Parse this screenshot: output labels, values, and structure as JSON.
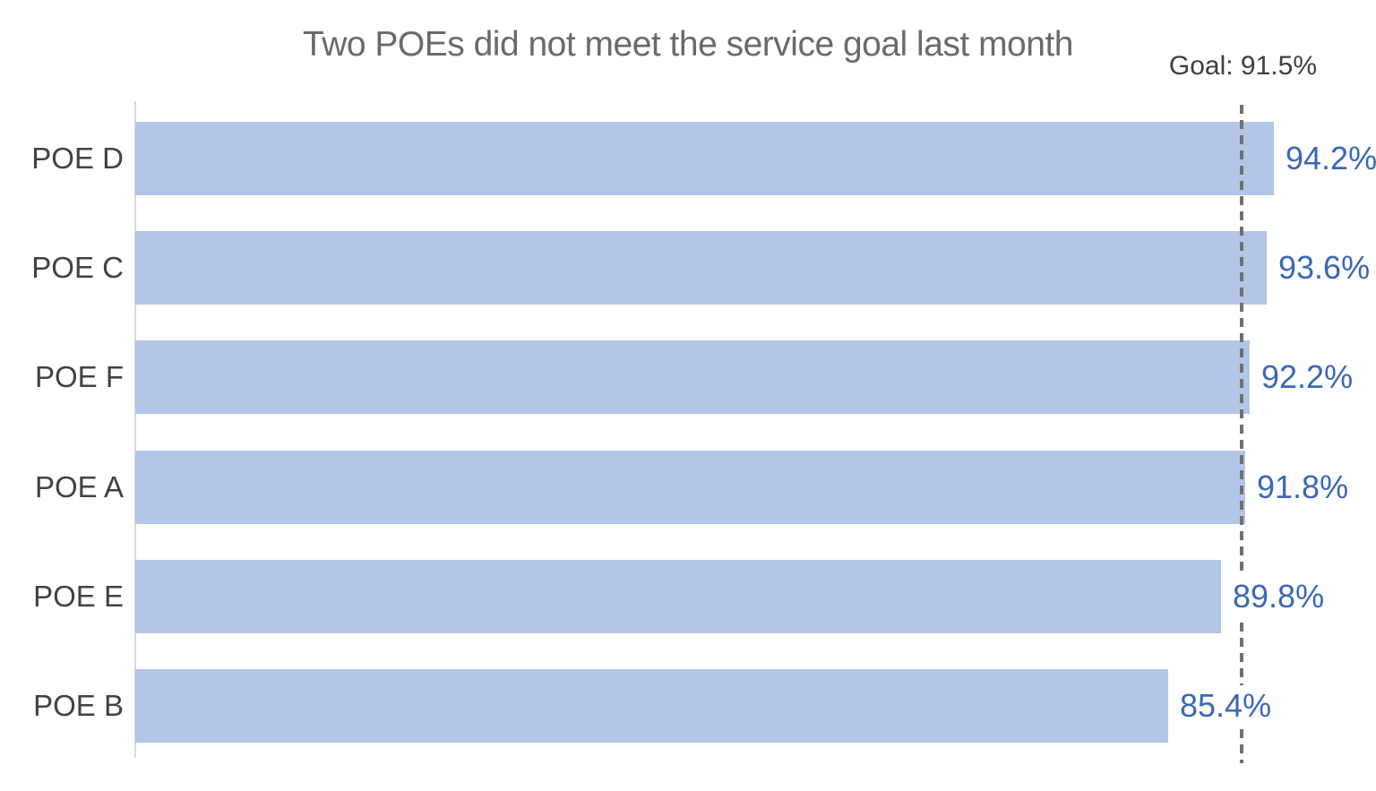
{
  "chart": {
    "title": "Two POEs did not meet the service goal last month",
    "goal_label": "Goal: 91.5%"
  },
  "chart_data": {
    "type": "bar",
    "orientation": "horizontal",
    "title": "Two POEs did not meet the service goal last month",
    "categories": [
      "POE D",
      "POE C",
      "POE F",
      "POE A",
      "POE E",
      "POE B"
    ],
    "values": [
      94.2,
      93.6,
      92.2,
      91.8,
      89.8,
      85.4
    ],
    "value_labels": [
      "94.2%",
      "93.6%",
      "92.2%",
      "91.8%",
      "89.8%",
      "85.4%"
    ],
    "goal": {
      "value": 91.5,
      "label": "Goal: 91.5%"
    },
    "xlim": [
      0,
      100
    ],
    "xlabel": "",
    "ylabel": "",
    "grid": false,
    "legend": "none",
    "sort": "descending",
    "annotations": [
      "goal reference line drawn as vertical dashed line over bars"
    ]
  },
  "colors": {
    "bar": "#b2c6e7",
    "value_label": "#3a68b6",
    "title": "#6a6a6a",
    "category_label": "#424242",
    "goal_text": "#3f3f3f",
    "goal_line": "#707070",
    "axis_line": "#d9d9d9",
    "background": "#ffffff"
  }
}
